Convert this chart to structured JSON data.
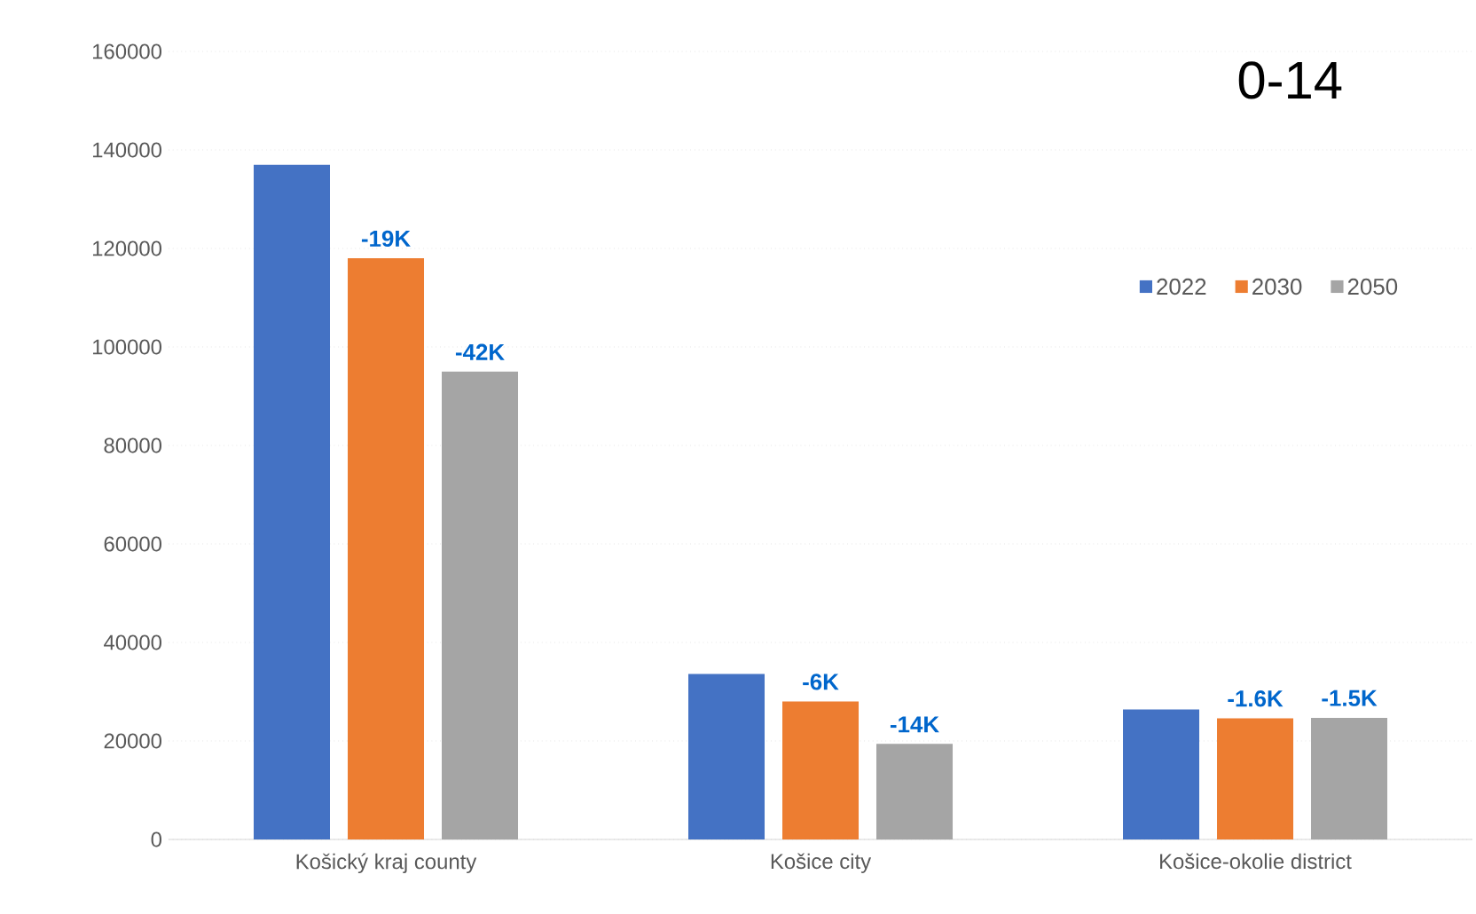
{
  "chart_data": {
    "type": "bar",
    "title": "0-14",
    "categories": [
      "Košický kraj county",
      "Košice city",
      "Košice-okolie district"
    ],
    "series": [
      {
        "name": "2022",
        "color": "#4472c4",
        "values": [
          137000,
          33600,
          26400
        ]
      },
      {
        "name": "2030",
        "color": "#ed7d31",
        "values": [
          118000,
          28000,
          24600
        ]
      },
      {
        "name": "2050",
        "color": "#a5a5a5",
        "values": [
          95000,
          19400,
          24700
        ]
      }
    ],
    "annotations": [
      "-19K",
      "-42K",
      "-6K",
      "-14K",
      "-1.6K",
      "-1.5K"
    ],
    "ylim": [
      0,
      160000
    ],
    "yticks": [
      0,
      20000,
      40000,
      60000,
      80000,
      100000,
      120000,
      140000,
      160000
    ],
    "grid": "y",
    "legend": "top right"
  }
}
